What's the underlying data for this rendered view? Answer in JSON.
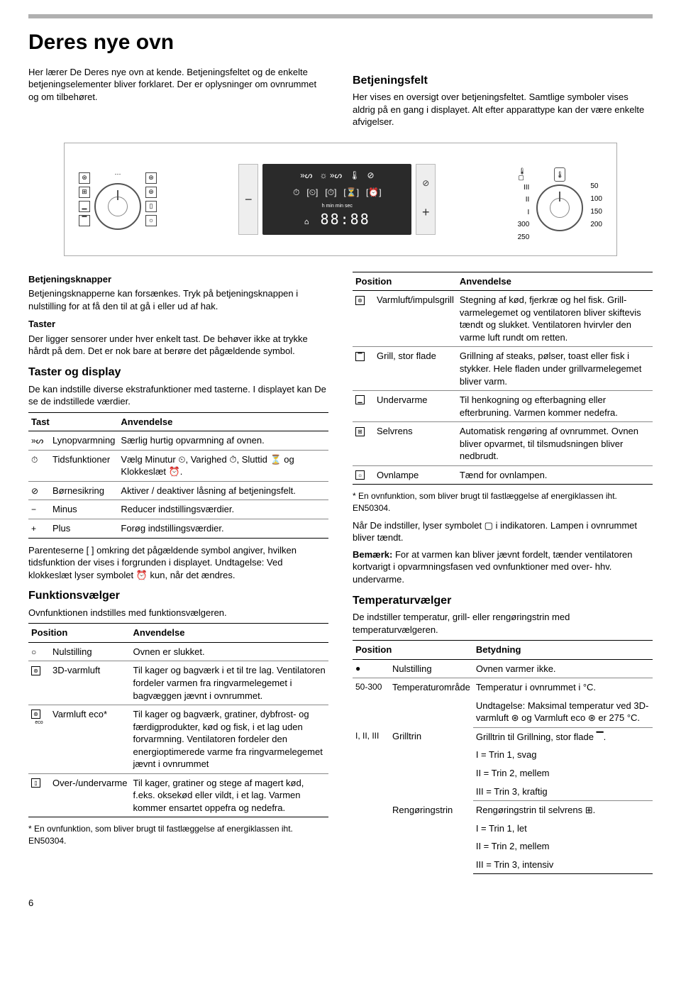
{
  "page_number": "6",
  "title": "Deres nye ovn",
  "intro_left": "Her lærer De Deres nye ovn at kende. Betjeningsfeltet og de enkelte betjeningselementer bliver forklaret. Der er oplysninger om ovnrummet og om tilbehøret.",
  "panel": {
    "heading": "Betjeningsfelt",
    "text": "Her vises en oversigt over betjeningsfeltet. Samtlige symboler vises aldrig på en gang i displayet. Alt efter apparattype kan der være enkelte afvigelser."
  },
  "diagram": {
    "display_digits": "88:88",
    "display_sub": "h  min   min sec",
    "temp_left": [
      "III",
      "II",
      "I",
      "300",
      "250"
    ],
    "temp_right": [
      "50",
      "100",
      "150",
      "200"
    ],
    "minus": "−",
    "plus": "+"
  },
  "knapper": {
    "heading": "Betjeningsknapper",
    "text": "Betjeningsknapperne kan forsænkes. Tryk på betjeningsknappen i nulstilling for at få den til at gå i eller ud af hak."
  },
  "taster": {
    "heading": "Taster",
    "text": "Der ligger sensorer under hver enkelt tast. De behøver ikke at trykke hårdt på dem. Det er nok bare at berøre det pågældende symbol."
  },
  "taster_display": {
    "heading": "Taster og display",
    "text": "De kan indstille diverse ekstrafunktioner med tasterne. I displayet kan De se de indstillede værdier.",
    "col1": "Tast",
    "col2": "Anvendelse",
    "rows": [
      {
        "icon": "»ᔕ",
        "name": "Lynopvarmning",
        "use": "Særlig hurtig opvarmning af ovnen."
      },
      {
        "icon": "⏱",
        "name": "Tidsfunktioner",
        "use": "Vælg Minutur ⏲, Varighed ⏱, Sluttid ⏳ og Klokkeslæt ⏰."
      },
      {
        "icon": "⊘",
        "name": "Børnesikring",
        "use": "Aktiver / deaktiver låsning af betjeningsfelt."
      },
      {
        "icon": "−",
        "name": "Minus",
        "use": "Reducer indstillingsværdier."
      },
      {
        "icon": "+",
        "name": "Plus",
        "use": "Forøg indstillingsværdier."
      }
    ],
    "note": "Parenteserne [ ] omkring det pågældende symbol angiver, hvilken tidsfunktion der vises i forgrunden i displayet. Undtagelse: Ved klokkeslæt lyser symbolet ⏰ kun, når det ændres."
  },
  "funktions": {
    "heading": "Funktionsvælger",
    "text": "Ovnfunktionen indstilles med funktionsvælgeren.",
    "col1": "Position",
    "col2": "Anvendelse",
    "rows": [
      {
        "icon": "○",
        "name": "Nulstilling",
        "use": "Ovnen er slukket."
      },
      {
        "icon": "⊛",
        "box": true,
        "name": "3D-varmluft",
        "use": "Til kager og bagværk i et til tre lag. Ventilatoren fordeler varmen fra ringvarmelegemet i bagvæggen jævnt i ovnrummet."
      },
      {
        "icon": "⊛",
        "box": true,
        "sub": "eco",
        "name": "Varmluft eco*",
        "use": "Til kager og bagværk, gratiner, dybfrost- og færdigprodukter, kød og fisk, i et lag uden forvarmning. Ventilatoren fordeler den energioptimerede varme fra ringvarmelegemet jævnt i ovnrummet"
      },
      {
        "icon": "▯",
        "box": true,
        "name": "Over-/undervarme",
        "use": "Til kager, gratiner og stege af magert kød, f.eks. oksekød eller vildt, i et lag. Varmen kommer ensartet oppefra og nedefra."
      }
    ],
    "footnote": "*   En ovnfunktion, som bliver brugt til fastlæggelse af energiklassen iht. EN50304."
  },
  "funktions2": {
    "col1": "Position",
    "col2": "Anvendelse",
    "rows": [
      {
        "icon": "⊛",
        "box": true,
        "name": "Varmluft/impulsgrill",
        "use": "Stegning af kød, fjerkræ og hel fisk. Grill-varmelegemet og ventilatoren bliver skiftevis tændt og slukket. Ventilatoren hvirvler den varme luft rundt om retten."
      },
      {
        "icon": "▔",
        "box": true,
        "name": "Grill, stor flade",
        "use": "Grillning af steaks, pølser, toast eller fisk i stykker. Hele fladen under grillvarmelegemet bliver varm."
      },
      {
        "icon": "▁",
        "box": true,
        "name": "Undervarme",
        "use": "Til henkogning og efterbagning eller efterbruning. Varmen kommer nedefra."
      },
      {
        "icon": "⊞",
        "box": true,
        "name": "Selvrens",
        "use": "Automatisk rengøring af ovnrummet. Ovnen bliver opvarmet, til tilsmudsningen bliver nedbrudt."
      },
      {
        "icon": "☼",
        "box": true,
        "name": "Ovnlampe",
        "use": "Tænd for ovnlampen."
      }
    ],
    "footnote": "*   En ovnfunktion, som bliver brugt til fastlæggelse af energiklassen iht. EN50304.",
    "after1": "Når De indstiller, lyser symbolet ▢ i indikatoren. Lampen i ovnrummet bliver tændt.",
    "after2_label": "Bemærk:",
    "after2": " For at varmen kan bliver jævnt fordelt, tænder ventilatoren kortvarigt i opvarmningsfasen ved ovnfunktioner med over- hhv. undervarme."
  },
  "tempv": {
    "heading": "Temperaturvælger",
    "text": "De indstiller temperatur, grill- eller rengøringstrin med temperaturvælgeren.",
    "col1": "Position",
    "col2": "Betydning",
    "rows": [
      {
        "icon": "●",
        "name": "Nulstilling",
        "use": "Ovnen varmer ikke."
      },
      {
        "icon": "50-300",
        "name": "Temperaturområde",
        "use": "Temperatur i ovnrummet i °C.",
        "use2": "Undtagelse: Maksimal temperatur ved 3D-varmluft ⊛ og Varmluft eco ⊛ er 275 °C."
      },
      {
        "icon": "I, II, III",
        "name": "Grilltrin",
        "use": "Grilltrin til Grillning, stor flade ▔.",
        "lines": [
          "I = Trin 1, svag",
          "II = Trin 2, mellem",
          "III = Trin 3, kraftig"
        ]
      },
      {
        "icon": "",
        "name": "Rengøringstrin",
        "use": "Rengøringstrin til selvrens ⊞.",
        "lines": [
          "I = Trin 1, let",
          "II = Trin 2, mellem",
          "III = Trin 3, intensiv"
        ]
      }
    ]
  }
}
